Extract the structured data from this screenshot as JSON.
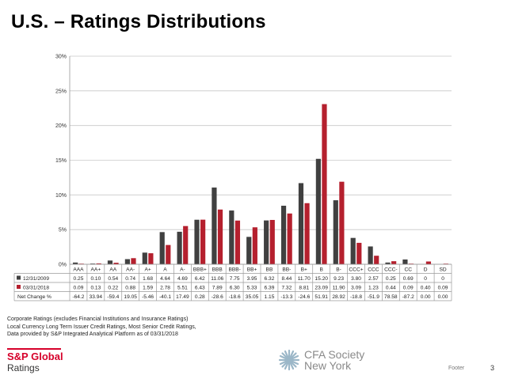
{
  "slide": {
    "title": "U.S. – Ratings Distributions",
    "notes": [
      "Corporate Ratings (excludes Financial Institutions and Insurance Ratings)",
      "Local Currency Long Term Issuer Credit Ratings, Most Senior Credit Ratings,",
      "Data provided  by S&P Integrated Analytical Platform as of 03/31/2018"
    ],
    "footer_label": "Footer",
    "page_number": "3"
  },
  "logos": {
    "sp_line1": "S&P Global",
    "sp_line2": "Ratings",
    "cfa_line1": "CFA Society",
    "cfa_line2": "New York"
  },
  "colors": {
    "series_2009": "#404040",
    "series_2018": "#b5202e",
    "grid": "#c8c8c8",
    "brand_red": "#d6002a"
  },
  "chart_data": {
    "type": "bar",
    "title": "",
    "xlabel": "",
    "ylabel": "",
    "ylim": [
      0,
      30
    ],
    "y_ticks": [
      "0%",
      "5%",
      "10%",
      "15%",
      "20%",
      "25%",
      "30%"
    ],
    "grid": true,
    "legend": "table-left",
    "categories": [
      "AAA",
      "AA+",
      "AA",
      "AA-",
      "A+",
      "A",
      "A-",
      "BBB+",
      "BBB",
      "BBB-",
      "BB+",
      "BB",
      "BB-",
      "B+",
      "B",
      "B-",
      "CCC+",
      "CCC",
      "CCC-",
      "CC",
      "D",
      "SD"
    ],
    "series": [
      {
        "name": "12/31/2009",
        "values": [
          0.25,
          0.1,
          0.54,
          0.74,
          1.68,
          4.64,
          4.69,
          6.42,
          11.06,
          7.75,
          3.95,
          6.32,
          8.44,
          11.7,
          15.2,
          9.23,
          3.8,
          2.57,
          0.25,
          0.69,
          0,
          0
        ],
        "labels": [
          "0.25",
          "0.10",
          "0.54",
          "0.74",
          "1.68",
          "4.64",
          "4.69",
          "6.42",
          "11.06",
          "7.75",
          "3.95",
          "6.32",
          "8.44",
          "11.70",
          "15.20",
          "9.23",
          "3.80",
          "2.57",
          "0.25",
          "0.69",
          "0",
          "0"
        ]
      },
      {
        "name": "03/31/2018",
        "values": [
          0.09,
          0.13,
          0.22,
          0.88,
          1.59,
          2.78,
          5.51,
          6.43,
          7.89,
          6.3,
          5.33,
          6.39,
          7.32,
          8.81,
          23.09,
          11.9,
          3.09,
          1.23,
          0.44,
          0.09,
          0.4,
          0.09
        ],
        "labels": [
          "0.09",
          "0.13",
          "0.22",
          "0.88",
          "1.59",
          "2.78",
          "5.51",
          "6.43",
          "7.89",
          "6.30",
          "5.33",
          "6.39",
          "7.32",
          "8.81",
          "23.09",
          "11.90",
          "3.09",
          "1.23",
          "0.44",
          "0.09",
          "0.40",
          "0.09"
        ]
      }
    ],
    "net_change": {
      "name": "Net Change %",
      "labels": [
        "-64.2",
        "33.94",
        "-59.4",
        "19.05",
        "-5.46",
        "-40.1",
        "17.49",
        "0.28",
        "-28.6",
        "-18.6",
        "35.05",
        "1.15",
        "-13.3",
        "-24.6",
        "51.91",
        "28.92",
        "-18.8",
        "-51.9",
        "78.58",
        "-87.2",
        "0.00",
        "0.00"
      ]
    }
  }
}
